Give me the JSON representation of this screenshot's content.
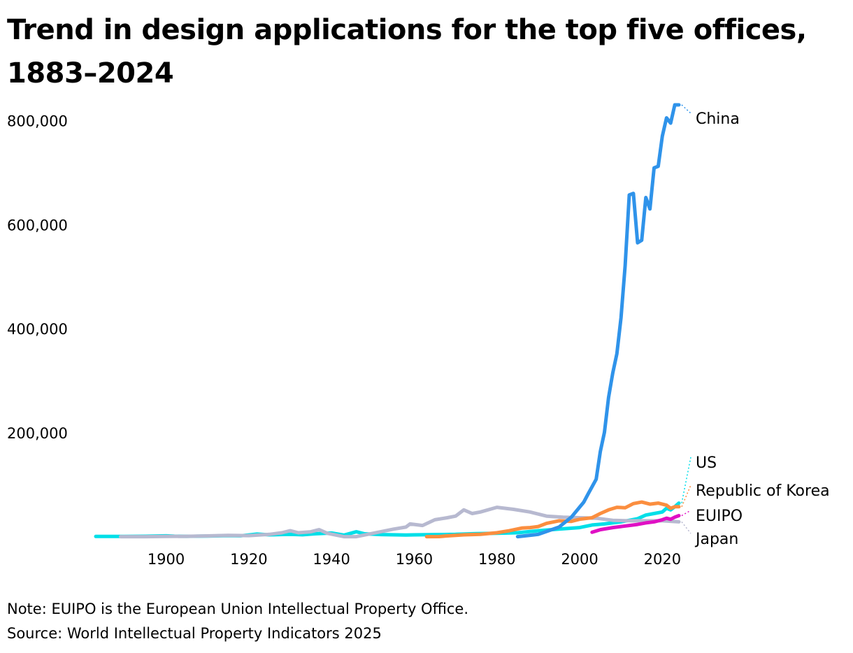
{
  "title": "Trend in design applications for the top five offices, 1883–2024",
  "note": "Note: EUIPO is the European Union Intellectual Property Office.",
  "source": "Source: World Intellectual Property Indicators 2025",
  "chart_data": {
    "type": "line",
    "title": "Trend in design applications for the top five offices, 1883–2024",
    "xlabel": "",
    "ylabel": "",
    "xlim": [
      1883,
      2024
    ],
    "ylim": [
      0,
      830000
    ],
    "xticks": [
      {
        "value": 1900,
        "label": "1900"
      },
      {
        "value": 1920,
        "label": "1920"
      },
      {
        "value": 1940,
        "label": "1940"
      },
      {
        "value": 1960,
        "label": "1960"
      },
      {
        "value": 1980,
        "label": "1980"
      },
      {
        "value": 2000,
        "label": "2000"
      },
      {
        "value": 2020,
        "label": "2020"
      }
    ],
    "yticks": [
      {
        "value": 200000,
        "label": "200,000"
      },
      {
        "value": 400000,
        "label": "400,000"
      },
      {
        "value": 600000,
        "label": "600,000"
      },
      {
        "value": 800000,
        "label": "800,000"
      }
    ],
    "grid": false,
    "legend": "direct labels at line ends (right)",
    "series": [
      {
        "name": "US",
        "color": "#00dfe8",
        "points": [
          [
            1883,
            1000
          ],
          [
            1886,
            900
          ],
          [
            1890,
            1100
          ],
          [
            1895,
            1400
          ],
          [
            1900,
            2200
          ],
          [
            1902,
            1500
          ],
          [
            1905,
            1200
          ],
          [
            1910,
            1800
          ],
          [
            1915,
            2500
          ],
          [
            1918,
            2200
          ],
          [
            1922,
            5500
          ],
          [
            1925,
            4000
          ],
          [
            1930,
            5000
          ],
          [
            1933,
            4200
          ],
          [
            1936,
            6000
          ],
          [
            1940,
            7500
          ],
          [
            1943,
            3500
          ],
          [
            1946,
            10000
          ],
          [
            1948,
            6000
          ],
          [
            1952,
            4500
          ],
          [
            1958,
            3800
          ],
          [
            1960,
            4000
          ],
          [
            1965,
            4500
          ],
          [
            1970,
            5000
          ],
          [
            1975,
            6500
          ],
          [
            1980,
            7000
          ],
          [
            1985,
            8000
          ],
          [
            1990,
            12000
          ],
          [
            1995,
            15000
          ],
          [
            2000,
            18000
          ],
          [
            2003,
            23000
          ],
          [
            2006,
            25000
          ],
          [
            2010,
            29000
          ],
          [
            2012,
            32000
          ],
          [
            2014,
            35000
          ],
          [
            2016,
            42000
          ],
          [
            2018,
            45000
          ],
          [
            2020,
            48000
          ],
          [
            2021,
            55000
          ],
          [
            2022,
            52000
          ],
          [
            2023,
            58000
          ],
          [
            2024,
            65000
          ]
        ]
      },
      {
        "name": "Japan",
        "color": "#b7b9d0",
        "points": [
          [
            1889,
            500
          ],
          [
            1895,
            600
          ],
          [
            1900,
            900
          ],
          [
            1905,
            1200
          ],
          [
            1910,
            2000
          ],
          [
            1915,
            3000
          ],
          [
            1920,
            2500
          ],
          [
            1925,
            5000
          ],
          [
            1928,
            8000
          ],
          [
            1930,
            12000
          ],
          [
            1932,
            8000
          ],
          [
            1935,
            10000
          ],
          [
            1937,
            14000
          ],
          [
            1939,
            7000
          ],
          [
            1943,
            500
          ],
          [
            1946,
            500
          ],
          [
            1950,
            7000
          ],
          [
            1955,
            15000
          ],
          [
            1958,
            19000
          ],
          [
            1959,
            25000
          ],
          [
            1962,
            22000
          ],
          [
            1965,
            33000
          ],
          [
            1968,
            37000
          ],
          [
            1970,
            40000
          ],
          [
            1972,
            52000
          ],
          [
            1974,
            45000
          ],
          [
            1976,
            48000
          ],
          [
            1980,
            57000
          ],
          [
            1984,
            53000
          ],
          [
            1988,
            48000
          ],
          [
            1992,
            40000
          ],
          [
            1996,
            38000
          ],
          [
            2000,
            37000
          ],
          [
            2004,
            36000
          ],
          [
            2008,
            32000
          ],
          [
            2012,
            31000
          ],
          [
            2016,
            31000
          ],
          [
            2020,
            31000
          ],
          [
            2024,
            29000
          ]
        ]
      },
      {
        "name": "Republic of Korea",
        "color": "#fb8e3f",
        "points": [
          [
            1963,
            500
          ],
          [
            1966,
            700
          ],
          [
            1968,
            2000
          ],
          [
            1972,
            4000
          ],
          [
            1976,
            5000
          ],
          [
            1980,
            8000
          ],
          [
            1983,
            12000
          ],
          [
            1986,
            17000
          ],
          [
            1988,
            18000
          ],
          [
            1990,
            20000
          ],
          [
            1992,
            26000
          ],
          [
            1995,
            31000
          ],
          [
            1998,
            30000
          ],
          [
            2000,
            34000
          ],
          [
            2003,
            37000
          ],
          [
            2005,
            45000
          ],
          [
            2007,
            52000
          ],
          [
            2009,
            57000
          ],
          [
            2011,
            56000
          ],
          [
            2013,
            64000
          ],
          [
            2015,
            67000
          ],
          [
            2017,
            63000
          ],
          [
            2019,
            65000
          ],
          [
            2021,
            61000
          ],
          [
            2022,
            55000
          ],
          [
            2023,
            58000
          ],
          [
            2024,
            58000
          ]
        ]
      },
      {
        "name": "EUIPO",
        "color": "#e010c4",
        "points": [
          [
            2003,
            9000
          ],
          [
            2005,
            14000
          ],
          [
            2008,
            18000
          ],
          [
            2010,
            20000
          ],
          [
            2012,
            22000
          ],
          [
            2014,
            24000
          ],
          [
            2016,
            27000
          ],
          [
            2018,
            29000
          ],
          [
            2020,
            33000
          ],
          [
            2021,
            36000
          ],
          [
            2022,
            34000
          ],
          [
            2023,
            38000
          ],
          [
            2024,
            41000
          ]
        ]
      },
      {
        "name": "China",
        "color": "#2f93ea",
        "points": [
          [
            1985,
            600
          ],
          [
            1990,
            5000
          ],
          [
            1995,
            19000
          ],
          [
            1998,
            38000
          ],
          [
            2001,
            67000
          ],
          [
            2002,
            82000
          ],
          [
            2004,
            111000
          ],
          [
            2005,
            164000
          ],
          [
            2006,
            201000
          ],
          [
            2007,
            268000
          ],
          [
            2008,
            315000
          ],
          [
            2009,
            352000
          ],
          [
            2010,
            421000
          ],
          [
            2011,
            521000
          ],
          [
            2012,
            657000
          ],
          [
            2013,
            660000
          ],
          [
            2014,
            565000
          ],
          [
            2015,
            570000
          ],
          [
            2016,
            652000
          ],
          [
            2017,
            630000
          ],
          [
            2018,
            709000
          ],
          [
            2019,
            712000
          ],
          [
            2020,
            770000
          ],
          [
            2021,
            805000
          ],
          [
            2022,
            795000
          ],
          [
            2023,
            830000
          ],
          [
            2024,
            830000
          ]
        ]
      }
    ],
    "labels": [
      {
        "series": "China",
        "text": "China"
      },
      {
        "series": "US",
        "text": "US"
      },
      {
        "series": "Republic of Korea",
        "text": "Republic of Korea"
      },
      {
        "series": "EUIPO",
        "text": "EUIPO"
      },
      {
        "series": "Japan",
        "text": "Japan"
      }
    ]
  }
}
